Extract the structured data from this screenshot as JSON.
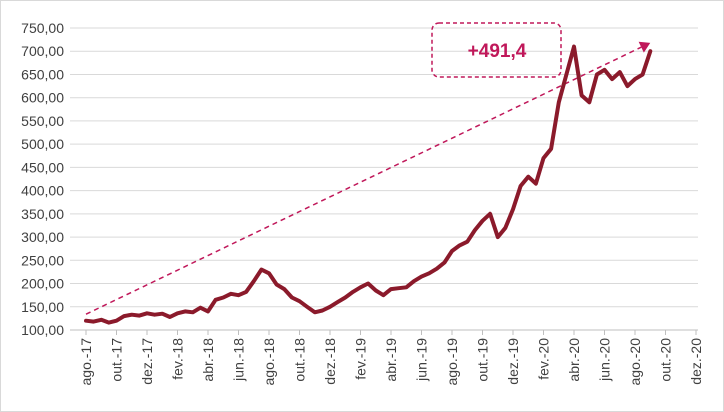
{
  "chart_data": {
    "type": "line",
    "title": "",
    "xlabel": "",
    "ylabel": "",
    "ylim": [
      100,
      750
    ],
    "y_ticks": [
      "100,00",
      "150,00",
      "200,00",
      "250,00",
      "300,00",
      "350,00",
      "400,00",
      "450,00",
      "500,00",
      "550,00",
      "600,00",
      "650,00",
      "700,00",
      "750,00"
    ],
    "x_ticks": [
      "ago.-17",
      "out.-17",
      "dez.-17",
      "fev.-18",
      "abr.-18",
      "jun.-18",
      "ago.-18",
      "out.-18",
      "dez.-18",
      "fev.-19",
      "abr.-19",
      "jun.-19",
      "ago.-19",
      "out.-19",
      "dez.-19",
      "fev.-20",
      "abr.-20",
      "jun.-20",
      "ago.-20",
      "out.-20",
      "dez.-20"
    ],
    "grid": "horizontal",
    "series_color": "#8b1a2b",
    "trend_color": "#c0185a",
    "annotation": {
      "text": "+491,4"
    },
    "series": [
      {
        "values": [
          [
            0,
            120
          ],
          [
            0.5,
            118
          ],
          [
            1,
            122
          ],
          [
            1.5,
            116
          ],
          [
            2,
            120
          ],
          [
            2.5,
            130
          ],
          [
            3,
            133
          ],
          [
            3.5,
            131
          ],
          [
            4,
            136
          ],
          [
            4.5,
            133
          ],
          [
            5,
            135
          ],
          [
            5.5,
            128
          ],
          [
            6,
            136
          ],
          [
            6.5,
            140
          ],
          [
            7,
            138
          ],
          [
            7.5,
            148
          ],
          [
            8,
            140
          ],
          [
            8.5,
            165
          ],
          [
            9,
            170
          ],
          [
            9.5,
            178
          ],
          [
            10,
            175
          ],
          [
            10.5,
            182
          ],
          [
            11,
            205
          ],
          [
            11.5,
            230
          ],
          [
            12,
            222
          ],
          [
            12.5,
            198
          ],
          [
            13,
            188
          ],
          [
            13.5,
            170
          ],
          [
            14,
            162
          ],
          [
            14.5,
            150
          ],
          [
            15,
            138
          ],
          [
            15.5,
            142
          ],
          [
            16,
            150
          ],
          [
            16.5,
            160
          ],
          [
            17,
            170
          ],
          [
            17.5,
            182
          ],
          [
            18,
            192
          ],
          [
            18.5,
            200
          ],
          [
            19,
            185
          ],
          [
            19.5,
            175
          ],
          [
            20,
            188
          ],
          [
            20.5,
            190
          ],
          [
            21,
            192
          ],
          [
            21.5,
            205
          ],
          [
            22,
            215
          ],
          [
            22.5,
            222
          ],
          [
            23,
            232
          ],
          [
            23.5,
            245
          ],
          [
            24,
            270
          ],
          [
            24.5,
            282
          ],
          [
            25,
            290
          ],
          [
            25.5,
            315
          ],
          [
            26,
            335
          ],
          [
            26.5,
            350
          ],
          [
            27,
            300
          ],
          [
            27.5,
            320
          ],
          [
            28,
            360
          ],
          [
            28.5,
            410
          ],
          [
            29,
            430
          ],
          [
            29.5,
            415
          ],
          [
            30,
            470
          ],
          [
            30.5,
            490
          ],
          [
            31,
            590
          ],
          [
            31.5,
            650
          ],
          [
            32,
            710
          ],
          [
            32.5,
            605
          ],
          [
            33,
            590
          ],
          [
            33.5,
            650
          ],
          [
            34,
            660
          ],
          [
            34.5,
            640
          ],
          [
            35,
            655
          ],
          [
            35.5,
            625
          ],
          [
            36,
            640
          ],
          [
            36.5,
            650
          ],
          [
            37,
            700
          ]
        ]
      }
    ],
    "trend": {
      "from": [
        0,
        134
      ],
      "to": [
        37,
        718
      ]
    }
  }
}
